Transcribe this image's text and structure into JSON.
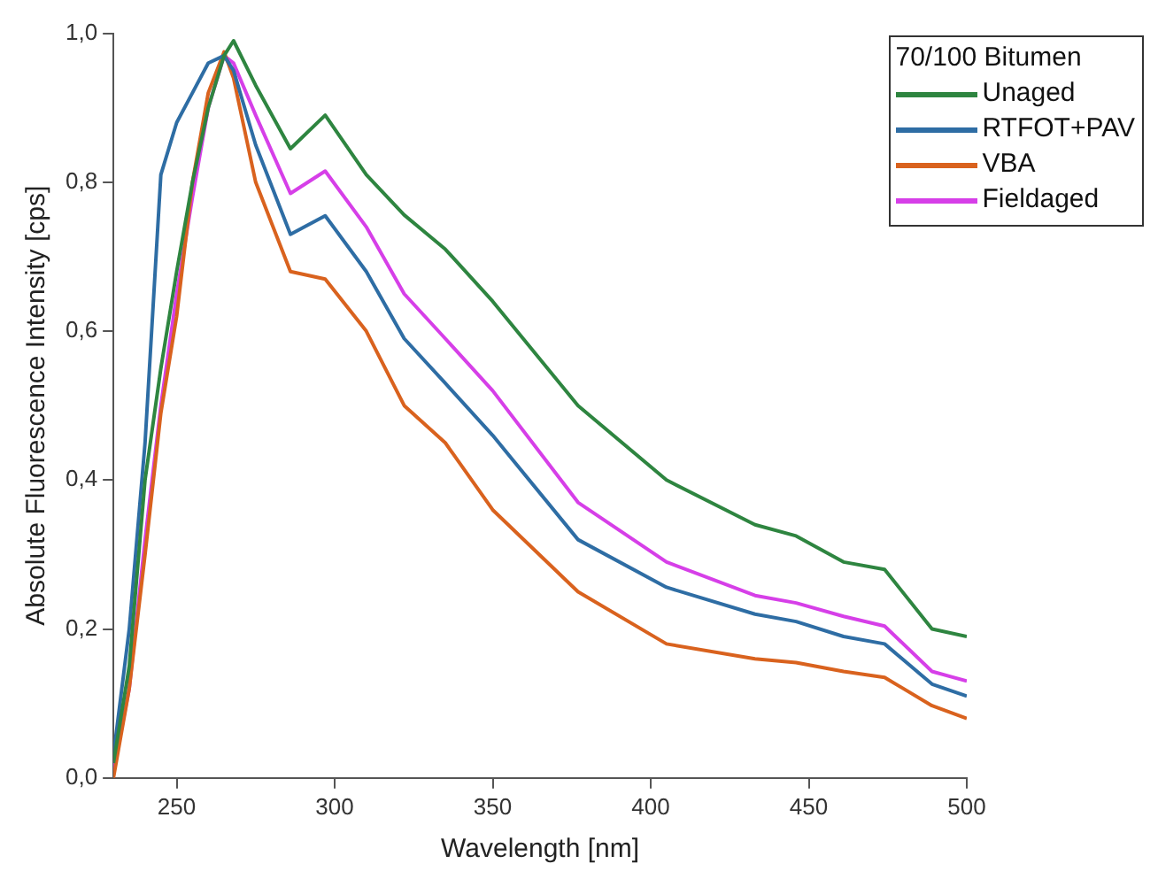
{
  "chart_data": {
    "type": "line",
    "xlabel": "Wavelength [nm]",
    "ylabel": "Absolute Fluorescence Intensity [cps]",
    "legend_title": "70/100 Bitumen",
    "legend": "top right",
    "grid": false,
    "marker": "none",
    "line_style": "solid",
    "xlim": [
      230,
      500
    ],
    "xticks": [
      250,
      300,
      350,
      400,
      450,
      500
    ],
    "ylim": [
      0,
      1.0
    ],
    "yticks": [
      {
        "value": 0,
        "label": "0,0"
      },
      {
        "value": 0.2,
        "label": "0,2"
      },
      {
        "value": 0.4,
        "label": "0,4"
      },
      {
        "value": 0.6,
        "label": "0,6"
      },
      {
        "value": 0.8,
        "label": "0,8"
      },
      {
        "value": 1.0,
        "label": "1,0"
      }
    ],
    "x": [
      230,
      235,
      240,
      245,
      250,
      255,
      260,
      265,
      268,
      275,
      286,
      297,
      310,
      322,
      335,
      350,
      377,
      405,
      433,
      446,
      461,
      474,
      489,
      500
    ],
    "series": [
      {
        "name": "Unaged",
        "color": "#2e8540",
        "values": [
          0.02,
          0.15,
          0.4,
          0.55,
          0.68,
          0.8,
          0.9,
          0.97,
          0.99,
          0.93,
          0.845,
          0.89,
          0.81,
          0.756,
          0.71,
          0.64,
          0.5,
          0.4,
          0.34,
          0.325,
          0.29,
          0.28,
          0.2,
          0.19
        ]
      },
      {
        "name": "RTFOT+PAV",
        "color": "#2e6da4",
        "values": [
          0.03,
          0.2,
          0.45,
          0.81,
          0.88,
          0.92,
          0.96,
          0.97,
          0.95,
          0.85,
          0.73,
          0.755,
          0.68,
          0.59,
          0.53,
          0.46,
          0.32,
          0.256,
          0.22,
          0.21,
          0.19,
          0.18,
          0.126,
          0.11
        ]
      },
      {
        "name": "VBA",
        "color": "#d9621e",
        "values": [
          0.0,
          0.12,
          0.3,
          0.49,
          0.62,
          0.8,
          0.92,
          0.975,
          0.94,
          0.8,
          0.68,
          0.67,
          0.6,
          0.5,
          0.45,
          0.36,
          0.25,
          0.18,
          0.16,
          0.155,
          0.143,
          0.135,
          0.097,
          0.08
        ]
      },
      {
        "name": "Fieldaged",
        "color": "#d63fe8",
        "values": [
          0.01,
          0.12,
          0.32,
          0.5,
          0.65,
          0.78,
          0.9,
          0.97,
          0.96,
          0.89,
          0.785,
          0.815,
          0.74,
          0.65,
          0.59,
          0.52,
          0.37,
          0.29,
          0.245,
          0.235,
          0.217,
          0.204,
          0.143,
          0.13
        ]
      }
    ]
  }
}
